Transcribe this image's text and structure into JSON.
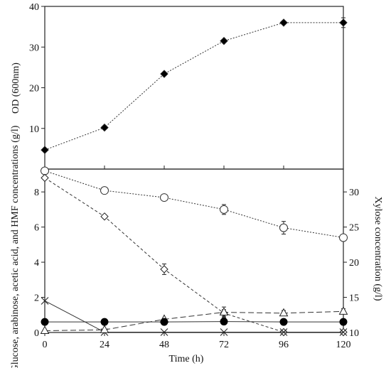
{
  "chart_data": [
    {
      "type": "line",
      "panel": "top",
      "ylabel": "OD (600nm)",
      "ylim": [
        0,
        40
      ],
      "yticks": [
        10,
        20,
        30,
        40
      ],
      "x": [
        0,
        24,
        48,
        72,
        96,
        120
      ],
      "series": [
        {
          "marker": "filled-diamond",
          "line": "dotted",
          "values": [
            4.7,
            10.2,
            23.4,
            31.5,
            36.0,
            36.0
          ],
          "errors": [
            0,
            0,
            0,
            0,
            0,
            1.2
          ]
        }
      ]
    },
    {
      "type": "line",
      "panel": "bottom",
      "xlabel": "Time (h)",
      "xlim": [
        0,
        120
      ],
      "xticks": [
        0,
        24,
        48,
        72,
        96,
        120
      ],
      "ylabel": "Glucose, arabinose, acetic acid, and HMF concentrations (g/l)",
      "ylim": [
        0,
        9.3
      ],
      "yticks": [
        0,
        2,
        4,
        6,
        8
      ],
      "y2label": "Xylose concentration (g/l)",
      "y2lim": [
        10,
        33.25
      ],
      "y2ticks": [
        10,
        15,
        20,
        25,
        30
      ],
      "x": [
        0,
        24,
        48,
        72,
        96,
        120
      ],
      "series": [
        {
          "marker": "open-circle",
          "line": "dotted",
          "axis": "right",
          "values": [
            33.0,
            30.2,
            29.2,
            27.5,
            24.9,
            23.5
          ],
          "errors": [
            0,
            0.3,
            0.2,
            0.7,
            0.9,
            0.2
          ]
        },
        {
          "marker": "open-diamond",
          "line": "dashed",
          "axis": "left",
          "values": [
            8.8,
            6.6,
            3.6,
            1.1,
            0.02,
            0.02
          ],
          "errors": [
            0,
            0.1,
            0.3,
            0.2,
            0,
            0
          ]
        },
        {
          "marker": "cross",
          "line": "solid",
          "axis": "left",
          "values": [
            1.8,
            0.02,
            0.02,
            0.02,
            0.02,
            0.02
          ],
          "errors": [
            0,
            0,
            0,
            0,
            0,
            0
          ]
        },
        {
          "marker": "open-triangle",
          "line": "long-dashed",
          "axis": "left",
          "values": [
            0.1,
            0.15,
            0.75,
            1.15,
            1.1,
            1.2
          ],
          "errors": [
            0,
            0,
            0,
            0.3,
            0.15,
            0.15
          ]
        },
        {
          "marker": "filled-circle",
          "line": "solid",
          "axis": "left",
          "values": [
            0.6,
            0.6,
            0.6,
            0.62,
            0.6,
            0.6
          ],
          "errors": [
            0,
            0,
            0,
            0,
            0,
            0
          ]
        }
      ]
    }
  ]
}
